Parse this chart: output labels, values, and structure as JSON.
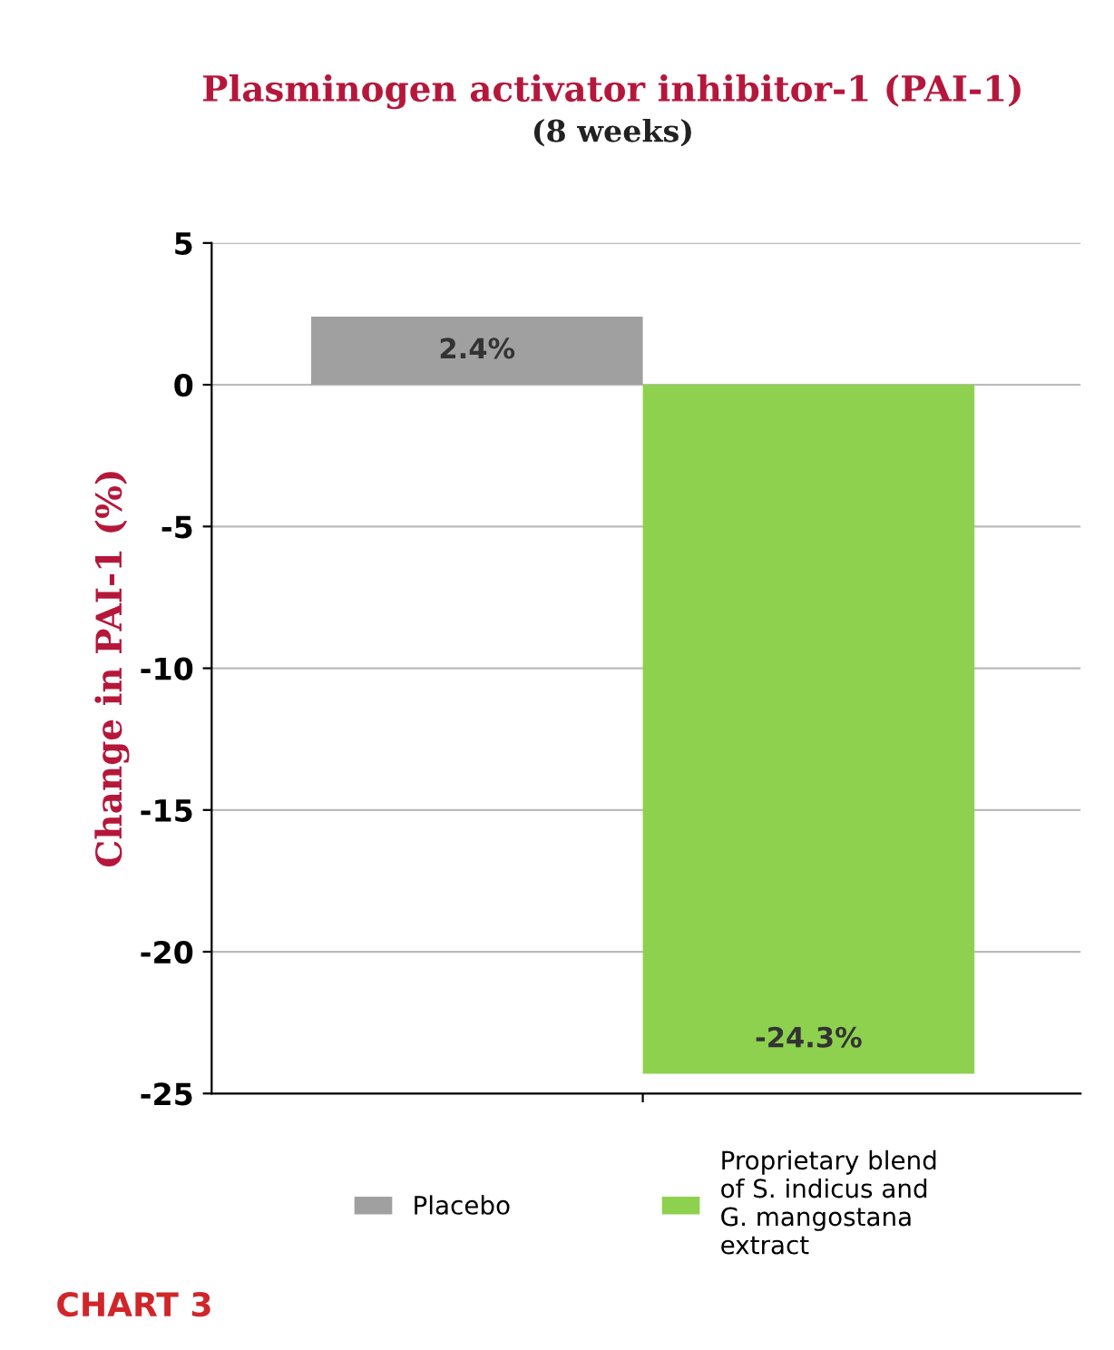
{
  "chart_data": {
    "type": "bar",
    "title": "Plasminogen activator inhibitor-1 (PAI-1)",
    "subtitle": "(8 weeks)",
    "ylabel": "Change in PAI-1 (%)",
    "categories": [
      null,
      null
    ],
    "series": [
      {
        "name": "Placebo",
        "color": "#a0a0a0",
        "values": [
          2.4,
          null
        ],
        "value_labels": [
          "2.4%",
          null
        ]
      },
      {
        "name": "Proprietary blend\nof S. indicus and\nG. mangostana\nextract",
        "color": "#8ed14f",
        "values": [
          null,
          -24.3
        ],
        "value_labels": [
          null,
          "-24.3%"
        ]
      }
    ],
    "ylim": [
      -25,
      5
    ],
    "yticks": [
      5,
      0,
      -5,
      -10,
      -15,
      -20,
      -25
    ],
    "grid": "y",
    "legend": "bottom",
    "annotations": [
      "CHART 3"
    ]
  }
}
